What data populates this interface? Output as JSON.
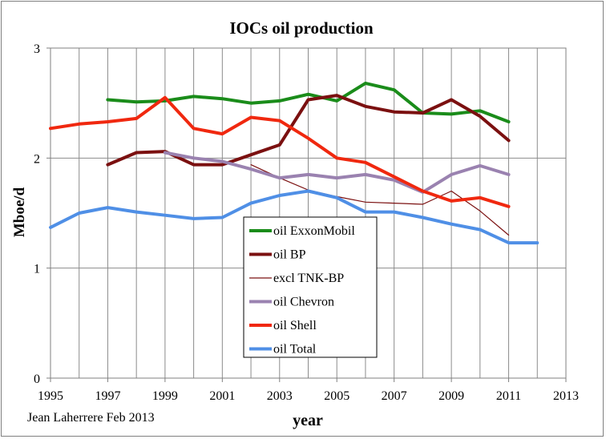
{
  "chart_data": {
    "type": "line",
    "title": "IOCs oil production",
    "xlabel": "year",
    "ylabel": "Mboe/d",
    "xlim": [
      1995,
      2013
    ],
    "ylim": [
      0,
      3
    ],
    "x_ticks": [
      "1995",
      "1997",
      "1999",
      "2001",
      "2003",
      "2005",
      "2007",
      "2009",
      "2011",
      "2013"
    ],
    "y_ticks": [
      "0",
      "1",
      "2",
      "3"
    ],
    "grid": true,
    "legend_position": "center-left, inside plot",
    "credit": "Jean Laherrere Feb 2013",
    "series": [
      {
        "name": "oil ExxonMobil",
        "color": "#1a8c1a",
        "width": 4,
        "points": [
          [
            1997,
            2.53
          ],
          [
            1998,
            2.51
          ],
          [
            1999,
            2.52
          ],
          [
            2000,
            2.56
          ],
          [
            2001,
            2.54
          ],
          [
            2002,
            2.5
          ],
          [
            2003,
            2.52
          ],
          [
            2004,
            2.58
          ],
          [
            2005,
            2.52
          ],
          [
            2006,
            2.68
          ],
          [
            2007,
            2.62
          ],
          [
            2008,
            2.41
          ],
          [
            2009,
            2.4
          ],
          [
            2010,
            2.43
          ],
          [
            2011,
            2.33
          ]
        ]
      },
      {
        "name": "oil BP",
        "color": "#7b1010",
        "width": 4,
        "points": [
          [
            1997,
            1.94
          ],
          [
            1998,
            2.05
          ],
          [
            1999,
            2.06
          ],
          [
            2000,
            1.94
          ],
          [
            2001,
            1.94
          ],
          [
            2002,
            2.03
          ],
          [
            2003,
            2.12
          ],
          [
            2004,
            2.53
          ],
          [
            2005,
            2.57
          ],
          [
            2006,
            2.47
          ],
          [
            2007,
            2.42
          ],
          [
            2008,
            2.41
          ],
          [
            2009,
            2.53
          ],
          [
            2010,
            2.38
          ],
          [
            2011,
            2.16
          ]
        ]
      },
      {
        "name": "excl TNK-BP",
        "color": "#7b1010",
        "width": 1.2,
        "points": [
          [
            2002,
            1.94
          ],
          [
            2003,
            1.82
          ],
          [
            2004,
            1.71
          ],
          [
            2005,
            1.65
          ],
          [
            2006,
            1.6
          ],
          [
            2007,
            1.59
          ],
          [
            2008,
            1.58
          ],
          [
            2009,
            1.7
          ],
          [
            2010,
            1.52
          ],
          [
            2011,
            1.3
          ]
        ]
      },
      {
        "name": "oil Chevron",
        "color": "#9a82b0",
        "width": 4,
        "points": [
          [
            1999,
            2.05
          ],
          [
            2000,
            2.0
          ],
          [
            2001,
            1.97
          ],
          [
            2002,
            1.9
          ],
          [
            2003,
            1.82
          ],
          [
            2004,
            1.85
          ],
          [
            2005,
            1.82
          ],
          [
            2006,
            1.85
          ],
          [
            2007,
            1.8
          ],
          [
            2008,
            1.69
          ],
          [
            2009,
            1.85
          ],
          [
            2010,
            1.93
          ],
          [
            2011,
            1.85
          ]
        ]
      },
      {
        "name": "oil Shell",
        "color": "#f0280f",
        "width": 4,
        "points": [
          [
            1995,
            2.27
          ],
          [
            1996,
            2.31
          ],
          [
            1997,
            2.33
          ],
          [
            1998,
            2.36
          ],
          [
            1999,
            2.55
          ],
          [
            2000,
            2.27
          ],
          [
            2001,
            2.22
          ],
          [
            2002,
            2.37
          ],
          [
            2003,
            2.34
          ],
          [
            2004,
            2.18
          ],
          [
            2005,
            2.0
          ],
          [
            2006,
            1.96
          ],
          [
            2007,
            1.83
          ],
          [
            2008,
            1.7
          ],
          [
            2009,
            1.61
          ],
          [
            2010,
            1.64
          ],
          [
            2011,
            1.56
          ]
        ]
      },
      {
        "name": "oil Total",
        "color": "#4f8fe6",
        "width": 4,
        "points": [
          [
            1995,
            1.37
          ],
          [
            1996,
            1.5
          ],
          [
            1997,
            1.55
          ],
          [
            1998,
            1.51
          ],
          [
            1999,
            1.48
          ],
          [
            2000,
            1.45
          ],
          [
            2001,
            1.46
          ],
          [
            2002,
            1.59
          ],
          [
            2003,
            1.66
          ],
          [
            2004,
            1.7
          ],
          [
            2005,
            1.64
          ],
          [
            2006,
            1.51
          ],
          [
            2007,
            1.51
          ],
          [
            2008,
            1.46
          ],
          [
            2009,
            1.4
          ],
          [
            2010,
            1.35
          ],
          [
            2011,
            1.23
          ],
          [
            2012,
            1.23
          ]
        ]
      }
    ]
  }
}
